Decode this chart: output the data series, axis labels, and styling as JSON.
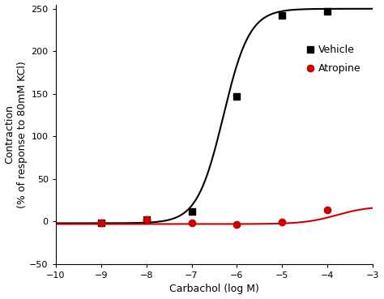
{
  "title": "",
  "xlabel": "Carbachol (log M)",
  "ylabel": "Contraction\n(% of response to 80mM KCl)",
  "xlim": [
    -10,
    -3
  ],
  "ylim": [
    -50,
    255
  ],
  "xticks": [
    -10,
    -9,
    -8,
    -7,
    -6,
    -5,
    -4,
    -3
  ],
  "yticks": [
    -50,
    0,
    50,
    100,
    150,
    200,
    250
  ],
  "vehicle_x": [
    -9,
    -8,
    -7,
    -6,
    -5,
    -4
  ],
  "vehicle_y": [
    -2,
    2,
    12,
    147,
    242,
    247
  ],
  "atropine_x": [
    -9,
    -8,
    -7,
    -6,
    -5,
    -4
  ],
  "atropine_y": [
    -2,
    2,
    -2,
    -3,
    -1,
    14
  ],
  "vehicle_color": "#000000",
  "atropine_color": "#cc0000",
  "vehicle_label": "Vehicle",
  "atropine_label": "Atropine",
  "vehicle_ec50": -6.3,
  "vehicle_emax": 250,
  "vehicle_emin": -2,
  "vehicle_hill": 1.5,
  "atropine_ec50": -3.8,
  "atropine_emax": 18,
  "atropine_emin": -3,
  "atropine_hill": 1.2,
  "marker_size": 6,
  "line_width": 1.5,
  "font_size": 9,
  "legend_font_size": 9
}
